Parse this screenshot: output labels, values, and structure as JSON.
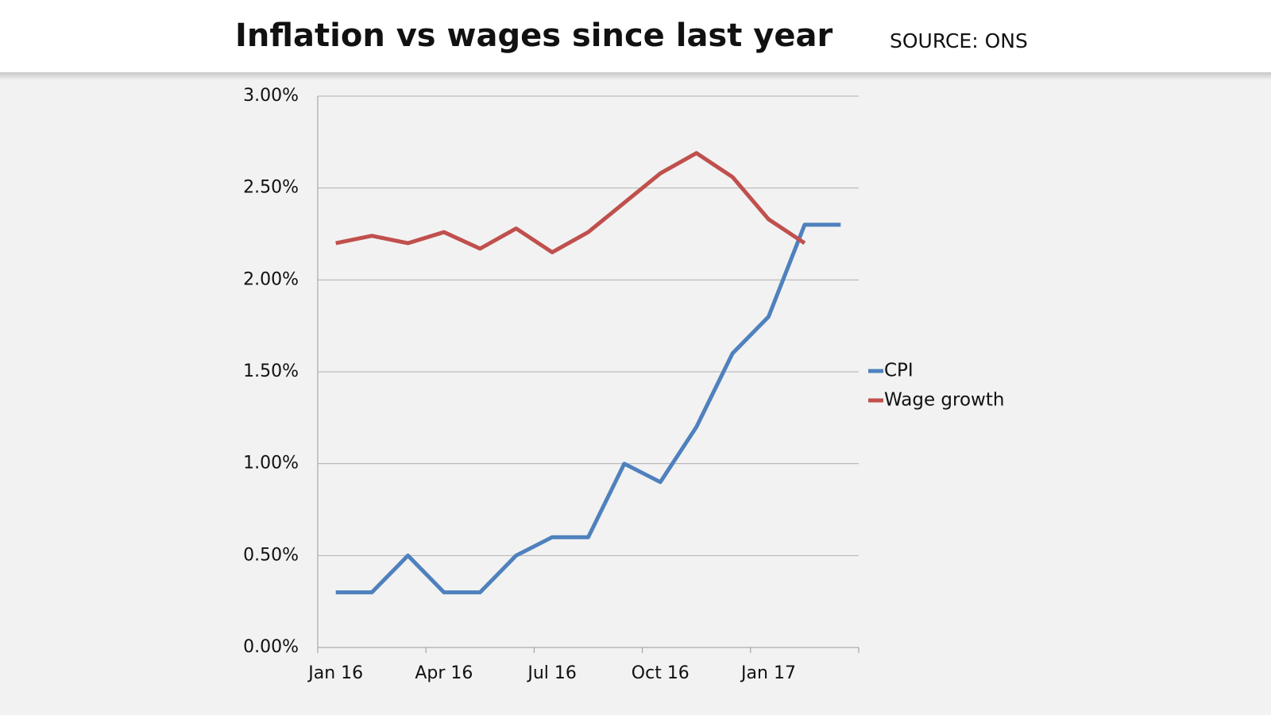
{
  "chart_data": {
    "type": "line",
    "title": "Inflation vs wages since last year",
    "source": "SOURCE: ONS",
    "categories": [
      "Jan 16",
      null,
      null,
      "Apr 16",
      null,
      null,
      "Jul 16",
      null,
      null,
      "Oct 16",
      null,
      null,
      "Jan 17",
      null,
      null
    ],
    "series": [
      {
        "name": "CPI",
        "color": "#4f81bd",
        "values": [
          0.3,
          0.3,
          0.5,
          0.3,
          0.3,
          0.5,
          0.6,
          0.6,
          1.0,
          0.9,
          1.2,
          1.6,
          1.8,
          2.3,
          2.3
        ]
      },
      {
        "name": "Wage growth",
        "color": "#c0504d",
        "values": [
          2.2,
          2.24,
          2.2,
          2.26,
          2.17,
          2.28,
          2.15,
          2.26,
          2.42,
          2.58,
          2.69,
          2.56,
          2.33,
          2.2,
          null
        ]
      }
    ],
    "ylim": [
      0,
      3
    ],
    "yticks": [
      {
        "value": 0,
        "label": "0.00%"
      },
      {
        "value": 0.5,
        "label": "0.50%"
      },
      {
        "value": 1,
        "label": "1.00%"
      },
      {
        "value": 1.5,
        "label": "1.50%"
      },
      {
        "value": 2,
        "label": "2.00%"
      },
      {
        "value": 2.5,
        "label": "2.50%"
      },
      {
        "value": 3,
        "label": "3.00%"
      }
    ],
    "grid": true,
    "legend": "right"
  }
}
